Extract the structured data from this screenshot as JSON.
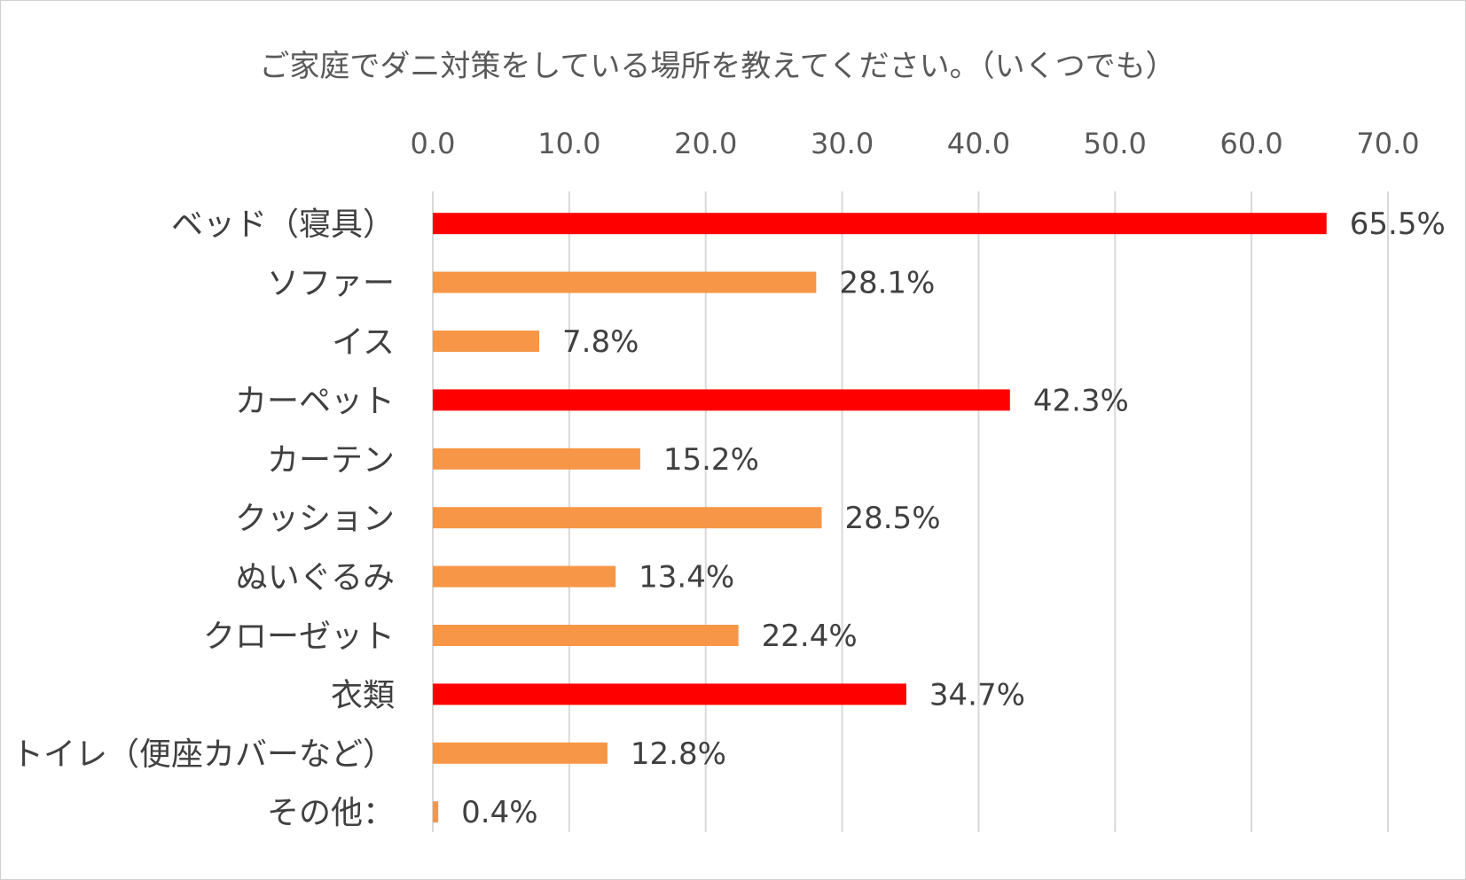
{
  "chart_data": {
    "type": "bar",
    "orientation": "horizontal",
    "title": "ご家庭でダニ対策をしている場所を教えてください。（いくつでも）",
    "xlabel": "",
    "ylabel": "",
    "xlim": [
      0,
      70
    ],
    "tick_values": [
      0,
      10,
      20,
      30,
      40,
      50,
      60,
      70
    ],
    "tick_labels": [
      "0.0",
      "10.0",
      "20.0",
      "30.0",
      "40.0",
      "50.0",
      "60.0",
      "70.0"
    ],
    "axis_position": "top",
    "grid": true,
    "legend": "none",
    "categories": [
      "ベッド（寝具）",
      "ソファー",
      "イス",
      "カーペット",
      "カーテン",
      "クッション",
      "ぬいぐるみ",
      "クローゼット",
      "衣類",
      "トイレ（便座カバーなど）",
      "その他："
    ],
    "values": [
      65.5,
      28.1,
      7.8,
      42.3,
      15.2,
      28.5,
      13.4,
      22.4,
      34.7,
      12.8,
      0.4
    ],
    "value_labels": [
      "65.5%",
      "28.1%",
      "7.8%",
      "42.3%",
      "15.2%",
      "28.5%",
      "13.4%",
      "22.4%",
      "34.7%",
      "12.8%",
      "0.4%"
    ],
    "highlight": [
      true,
      false,
      false,
      true,
      false,
      false,
      false,
      false,
      true,
      false,
      false
    ],
    "colors": {
      "highlight": "#ff0000",
      "normal": "#f79646",
      "grid": "#d9d9d9",
      "text": "#404040"
    }
  }
}
